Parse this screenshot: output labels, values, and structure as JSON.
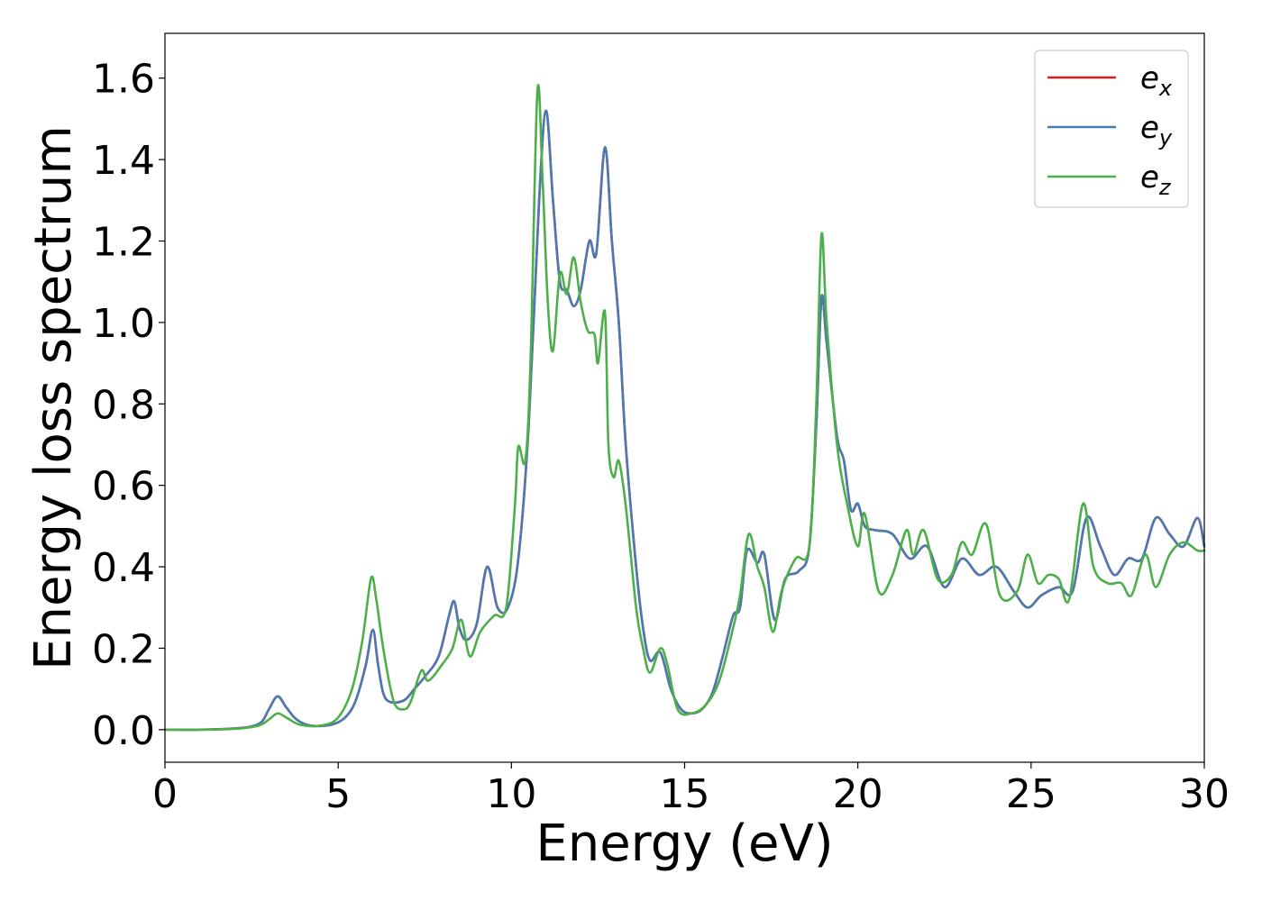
{
  "chart_data": {
    "type": "line",
    "title": "",
    "xlabel": "Energy (eV)",
    "ylabel": "Energy loss spectrum",
    "xlim": [
      0,
      30
    ],
    "ylim": [
      -0.08,
      1.71
    ],
    "xticks": [
      0,
      5,
      10,
      15,
      20,
      25,
      30
    ],
    "xtick_labels": [
      "0",
      "5",
      "10",
      "15",
      "20",
      "25",
      "30"
    ],
    "yticks": [
      0.0,
      0.2,
      0.4,
      0.6,
      0.8,
      1.0,
      1.2,
      1.4,
      1.6
    ],
    "ytick_labels": [
      "0.0",
      "0.2",
      "0.4",
      "0.6",
      "0.8",
      "1.0",
      "1.2",
      "1.4",
      "1.6"
    ],
    "grid": false,
    "legend_position": "top-right",
    "series": [
      {
        "name": "e",
        "subscript": "x",
        "color": "#e41a1c",
        "points": [
          [
            0,
            0.0
          ],
          [
            1,
            0.0
          ],
          [
            2,
            0.003
          ],
          [
            2.5,
            0.008
          ],
          [
            2.8,
            0.02
          ],
          [
            3.0,
            0.05
          ],
          [
            3.25,
            0.082
          ],
          [
            3.5,
            0.055
          ],
          [
            3.8,
            0.025
          ],
          [
            4.2,
            0.01
          ],
          [
            4.8,
            0.012
          ],
          [
            5.2,
            0.03
          ],
          [
            5.5,
            0.07
          ],
          [
            5.8,
            0.16
          ],
          [
            6.0,
            0.245
          ],
          [
            6.15,
            0.16
          ],
          [
            6.3,
            0.09
          ],
          [
            6.5,
            0.068
          ],
          [
            6.9,
            0.072
          ],
          [
            7.2,
            0.1
          ],
          [
            7.5,
            0.13
          ],
          [
            7.9,
            0.18
          ],
          [
            8.2,
            0.28
          ],
          [
            8.35,
            0.315
          ],
          [
            8.5,
            0.25
          ],
          [
            8.7,
            0.22
          ],
          [
            9.0,
            0.26
          ],
          [
            9.3,
            0.4
          ],
          [
            9.6,
            0.3
          ],
          [
            9.9,
            0.3
          ],
          [
            10.2,
            0.42
          ],
          [
            10.5,
            0.75
          ],
          [
            10.8,
            1.3
          ],
          [
            11.0,
            1.52
          ],
          [
            11.2,
            1.3
          ],
          [
            11.4,
            1.1
          ],
          [
            11.6,
            1.08
          ],
          [
            11.8,
            1.04
          ],
          [
            12.0,
            1.08
          ],
          [
            12.25,
            1.2
          ],
          [
            12.45,
            1.17
          ],
          [
            12.7,
            1.43
          ],
          [
            12.9,
            1.2
          ],
          [
            13.1,
            1.0
          ],
          [
            13.3,
            0.7
          ],
          [
            13.6,
            0.4
          ],
          [
            13.8,
            0.25
          ],
          [
            14.0,
            0.17
          ],
          [
            14.3,
            0.19
          ],
          [
            14.6,
            0.1
          ],
          [
            14.9,
            0.05
          ],
          [
            15.2,
            0.04
          ],
          [
            15.5,
            0.05
          ],
          [
            15.8,
            0.09
          ],
          [
            16.1,
            0.18
          ],
          [
            16.4,
            0.28
          ],
          [
            16.6,
            0.3
          ],
          [
            16.8,
            0.44
          ],
          [
            17.1,
            0.41
          ],
          [
            17.3,
            0.43
          ],
          [
            17.6,
            0.27
          ],
          [
            17.9,
            0.37
          ],
          [
            18.3,
            0.39
          ],
          [
            18.6,
            0.45
          ],
          [
            18.8,
            0.75
          ],
          [
            18.95,
            1.06
          ],
          [
            19.1,
            0.95
          ],
          [
            19.4,
            0.72
          ],
          [
            19.6,
            0.66
          ],
          [
            19.8,
            0.54
          ],
          [
            20.0,
            0.555
          ],
          [
            20.2,
            0.5
          ],
          [
            20.5,
            0.49
          ],
          [
            21.0,
            0.48
          ],
          [
            21.5,
            0.42
          ],
          [
            22.0,
            0.45
          ],
          [
            22.5,
            0.35
          ],
          [
            23.0,
            0.42
          ],
          [
            23.5,
            0.38
          ],
          [
            24.0,
            0.4
          ],
          [
            24.5,
            0.34
          ],
          [
            24.9,
            0.3
          ],
          [
            25.3,
            0.33
          ],
          [
            25.8,
            0.35
          ],
          [
            26.2,
            0.34
          ],
          [
            26.6,
            0.52
          ],
          [
            27.0,
            0.45
          ],
          [
            27.4,
            0.38
          ],
          [
            27.8,
            0.42
          ],
          [
            28.2,
            0.42
          ],
          [
            28.6,
            0.52
          ],
          [
            29.0,
            0.48
          ],
          [
            29.4,
            0.45
          ],
          [
            29.8,
            0.52
          ],
          [
            30.0,
            0.45
          ]
        ]
      },
      {
        "name": "e",
        "subscript": "y",
        "color": "#4a7ab3",
        "points": [
          [
            0,
            0.0
          ],
          [
            1,
            0.0
          ],
          [
            2,
            0.003
          ],
          [
            2.5,
            0.008
          ],
          [
            2.8,
            0.02
          ],
          [
            3.0,
            0.05
          ],
          [
            3.25,
            0.082
          ],
          [
            3.5,
            0.055
          ],
          [
            3.8,
            0.025
          ],
          [
            4.2,
            0.01
          ],
          [
            4.8,
            0.012
          ],
          [
            5.2,
            0.03
          ],
          [
            5.5,
            0.07
          ],
          [
            5.8,
            0.16
          ],
          [
            6.0,
            0.245
          ],
          [
            6.15,
            0.16
          ],
          [
            6.3,
            0.09
          ],
          [
            6.5,
            0.068
          ],
          [
            6.9,
            0.072
          ],
          [
            7.2,
            0.1
          ],
          [
            7.5,
            0.13
          ],
          [
            7.9,
            0.18
          ],
          [
            8.2,
            0.28
          ],
          [
            8.35,
            0.315
          ],
          [
            8.5,
            0.25
          ],
          [
            8.7,
            0.22
          ],
          [
            9.0,
            0.26
          ],
          [
            9.3,
            0.4
          ],
          [
            9.6,
            0.3
          ],
          [
            9.9,
            0.3
          ],
          [
            10.2,
            0.42
          ],
          [
            10.5,
            0.75
          ],
          [
            10.8,
            1.3
          ],
          [
            11.0,
            1.52
          ],
          [
            11.2,
            1.3
          ],
          [
            11.4,
            1.1
          ],
          [
            11.6,
            1.08
          ],
          [
            11.8,
            1.04
          ],
          [
            12.0,
            1.08
          ],
          [
            12.25,
            1.2
          ],
          [
            12.45,
            1.17
          ],
          [
            12.7,
            1.43
          ],
          [
            12.9,
            1.2
          ],
          [
            13.1,
            1.0
          ],
          [
            13.3,
            0.7
          ],
          [
            13.6,
            0.4
          ],
          [
            13.8,
            0.25
          ],
          [
            14.0,
            0.17
          ],
          [
            14.3,
            0.19
          ],
          [
            14.6,
            0.1
          ],
          [
            14.9,
            0.05
          ],
          [
            15.2,
            0.04
          ],
          [
            15.5,
            0.05
          ],
          [
            15.8,
            0.09
          ],
          [
            16.1,
            0.18
          ],
          [
            16.4,
            0.28
          ],
          [
            16.6,
            0.3
          ],
          [
            16.8,
            0.44
          ],
          [
            17.1,
            0.41
          ],
          [
            17.3,
            0.43
          ],
          [
            17.6,
            0.27
          ],
          [
            17.9,
            0.37
          ],
          [
            18.3,
            0.39
          ],
          [
            18.6,
            0.45
          ],
          [
            18.8,
            0.75
          ],
          [
            18.95,
            1.06
          ],
          [
            19.1,
            0.95
          ],
          [
            19.4,
            0.72
          ],
          [
            19.6,
            0.66
          ],
          [
            19.8,
            0.54
          ],
          [
            20.0,
            0.555
          ],
          [
            20.2,
            0.5
          ],
          [
            20.5,
            0.49
          ],
          [
            21.0,
            0.48
          ],
          [
            21.5,
            0.42
          ],
          [
            22.0,
            0.45
          ],
          [
            22.5,
            0.35
          ],
          [
            23.0,
            0.42
          ],
          [
            23.5,
            0.38
          ],
          [
            24.0,
            0.4
          ],
          [
            24.5,
            0.34
          ],
          [
            24.9,
            0.3
          ],
          [
            25.3,
            0.33
          ],
          [
            25.8,
            0.35
          ],
          [
            26.2,
            0.34
          ],
          [
            26.6,
            0.52
          ],
          [
            27.0,
            0.45
          ],
          [
            27.4,
            0.38
          ],
          [
            27.8,
            0.42
          ],
          [
            28.2,
            0.42
          ],
          [
            28.6,
            0.52
          ],
          [
            29.0,
            0.48
          ],
          [
            29.4,
            0.45
          ],
          [
            29.8,
            0.52
          ],
          [
            30.0,
            0.45
          ]
        ]
      },
      {
        "name": "e",
        "subscript": "z",
        "color": "#4daf4a",
        "points": [
          [
            0,
            0.0
          ],
          [
            1,
            0.0
          ],
          [
            2,
            0.002
          ],
          [
            2.7,
            0.01
          ],
          [
            3.0,
            0.025
          ],
          [
            3.25,
            0.04
          ],
          [
            3.5,
            0.03
          ],
          [
            3.9,
            0.012
          ],
          [
            4.5,
            0.01
          ],
          [
            5.0,
            0.03
          ],
          [
            5.4,
            0.1
          ],
          [
            5.7,
            0.22
          ],
          [
            5.95,
            0.372
          ],
          [
            6.1,
            0.32
          ],
          [
            6.3,
            0.2
          ],
          [
            6.6,
            0.07
          ],
          [
            6.9,
            0.05
          ],
          [
            7.1,
            0.07
          ],
          [
            7.4,
            0.145
          ],
          [
            7.6,
            0.12
          ],
          [
            8.0,
            0.16
          ],
          [
            8.3,
            0.2
          ],
          [
            8.55,
            0.27
          ],
          [
            8.8,
            0.18
          ],
          [
            9.1,
            0.24
          ],
          [
            9.5,
            0.28
          ],
          [
            9.85,
            0.3
          ],
          [
            10.1,
            0.55
          ],
          [
            10.2,
            0.695
          ],
          [
            10.4,
            0.66
          ],
          [
            10.55,
            0.9
          ],
          [
            10.75,
            1.567
          ],
          [
            10.9,
            1.35
          ],
          [
            11.05,
            1.05
          ],
          [
            11.2,
            0.93
          ],
          [
            11.4,
            1.12
          ],
          [
            11.6,
            1.07
          ],
          [
            11.8,
            1.16
          ],
          [
            12.0,
            1.05
          ],
          [
            12.2,
            0.98
          ],
          [
            12.4,
            0.97
          ],
          [
            12.5,
            0.9
          ],
          [
            12.7,
            1.025
          ],
          [
            12.8,
            0.7
          ],
          [
            12.95,
            0.62
          ],
          [
            13.1,
            0.66
          ],
          [
            13.3,
            0.55
          ],
          [
            13.6,
            0.3
          ],
          [
            13.8,
            0.2
          ],
          [
            14.0,
            0.14
          ],
          [
            14.3,
            0.2
          ],
          [
            14.5,
            0.16
          ],
          [
            14.8,
            0.05
          ],
          [
            15.2,
            0.04
          ],
          [
            15.6,
            0.06
          ],
          [
            16.0,
            0.12
          ],
          [
            16.4,
            0.25
          ],
          [
            16.6,
            0.33
          ],
          [
            16.85,
            0.48
          ],
          [
            17.1,
            0.4
          ],
          [
            17.3,
            0.35
          ],
          [
            17.55,
            0.24
          ],
          [
            17.8,
            0.34
          ],
          [
            18.2,
            0.42
          ],
          [
            18.6,
            0.45
          ],
          [
            18.8,
            0.8
          ],
          [
            18.95,
            1.215
          ],
          [
            19.1,
            1.0
          ],
          [
            19.4,
            0.7
          ],
          [
            19.7,
            0.55
          ],
          [
            20.0,
            0.45
          ],
          [
            20.2,
            0.53
          ],
          [
            20.6,
            0.34
          ],
          [
            21.0,
            0.38
          ],
          [
            21.4,
            0.49
          ],
          [
            21.6,
            0.43
          ],
          [
            21.9,
            0.49
          ],
          [
            22.3,
            0.37
          ],
          [
            22.7,
            0.38
          ],
          [
            23.0,
            0.46
          ],
          [
            23.3,
            0.43
          ],
          [
            23.7,
            0.505
          ],
          [
            24.1,
            0.33
          ],
          [
            24.6,
            0.34
          ],
          [
            24.9,
            0.43
          ],
          [
            25.2,
            0.36
          ],
          [
            25.5,
            0.38
          ],
          [
            25.8,
            0.37
          ],
          [
            26.1,
            0.32
          ],
          [
            26.5,
            0.555
          ],
          [
            26.8,
            0.4
          ],
          [
            27.2,
            0.36
          ],
          [
            27.6,
            0.36
          ],
          [
            27.9,
            0.33
          ],
          [
            28.3,
            0.43
          ],
          [
            28.6,
            0.35
          ],
          [
            29.0,
            0.43
          ],
          [
            29.4,
            0.46
          ],
          [
            29.8,
            0.44
          ],
          [
            30.0,
            0.44
          ]
        ]
      }
    ]
  }
}
